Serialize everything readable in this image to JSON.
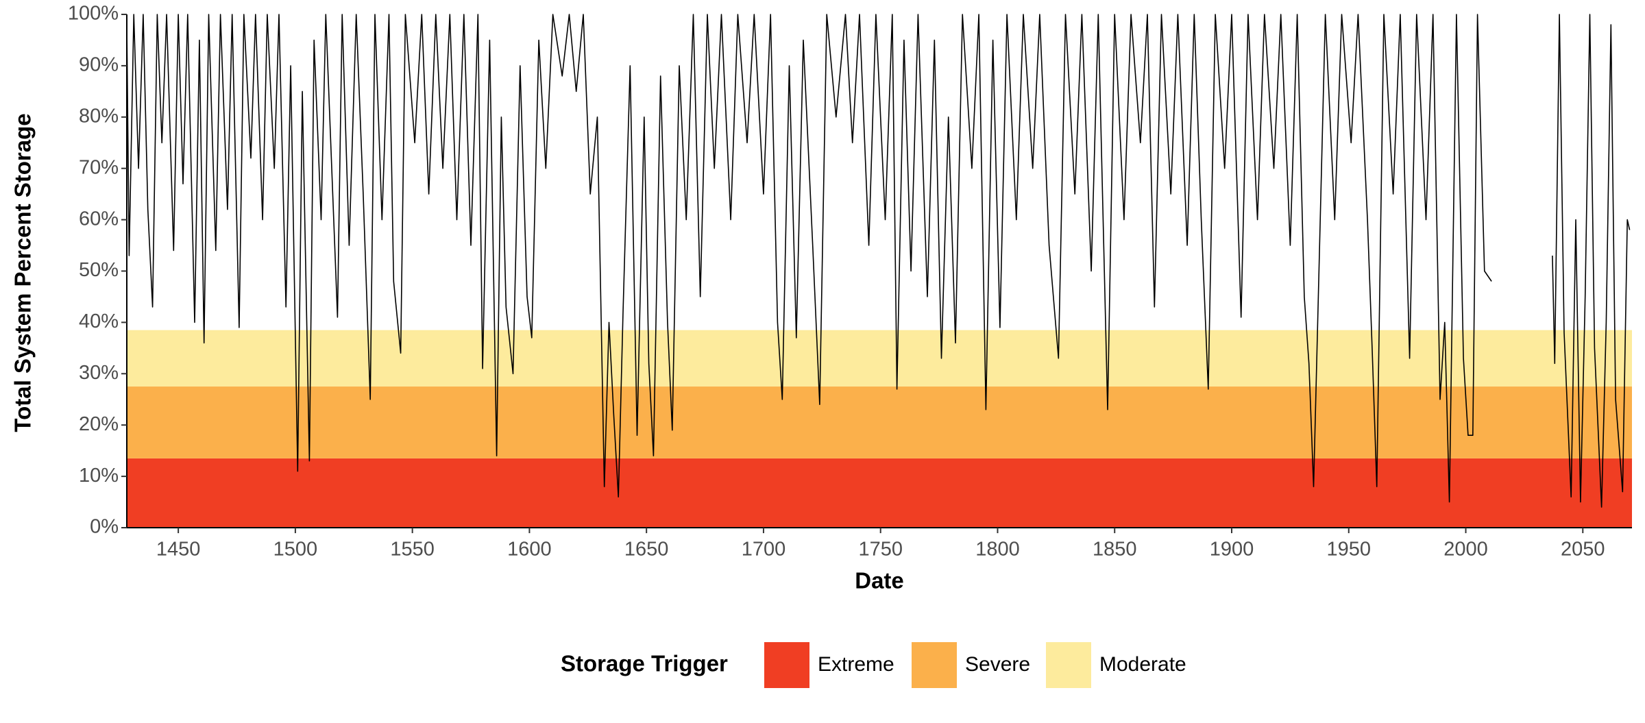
{
  "chart_data": {
    "type": "line",
    "x_label": "Date",
    "y_label": "Total System Percent Storage",
    "legend_title": "Storage Trigger",
    "line_color": "#000000",
    "triggers": [
      {
        "name": "Extreme",
        "color": "#f03e23",
        "range": [
          0,
          13.5
        ]
      },
      {
        "name": "Severe",
        "color": "#fbb04b",
        "range": [
          13.5,
          27.5
        ]
      },
      {
        "name": "Moderate",
        "color": "#fdeb9d",
        "range": [
          27.5,
          38.5
        ]
      }
    ],
    "xlim": [
      1428,
      2071
    ],
    "xticks": [
      1450,
      1500,
      1550,
      1600,
      1650,
      1700,
      1750,
      1800,
      1850,
      1900,
      1950,
      2000,
      2050
    ],
    "ylim": [
      0,
      100
    ],
    "yticks": [
      {
        "value": 0,
        "label": "0%"
      },
      {
        "value": 10,
        "label": "10%"
      },
      {
        "value": 20,
        "label": "20%"
      },
      {
        "value": 30,
        "label": "30%"
      },
      {
        "value": 40,
        "label": "40%"
      },
      {
        "value": 50,
        "label": "50%"
      },
      {
        "value": 60,
        "label": "60%"
      },
      {
        "value": 70,
        "label": "70%"
      },
      {
        "value": 80,
        "label": "80%"
      },
      {
        "value": 90,
        "label": "90%"
      },
      {
        "value": 100,
        "label": "100%"
      }
    ],
    "x": [
      1428,
      1429,
      1431,
      1433,
      1435,
      1437,
      1439,
      1441,
      1443,
      1445,
      1448,
      1450,
      1452,
      1454,
      1457,
      1459,
      1461,
      1463,
      1466,
      1468,
      1471,
      1473,
      1476,
      1478,
      1481,
      1483,
      1486,
      1488,
      1491,
      1493,
      1496,
      1498,
      1501,
      1503,
      1506,
      1508,
      1511,
      1513,
      1518,
      1520,
      1523,
      1526,
      1529,
      1532,
      1534,
      1537,
      1540,
      1542,
      1545,
      1547,
      1551,
      1554,
      1557,
      1560,
      1563,
      1566,
      1569,
      1572,
      1575,
      1578,
      1580,
      1583,
      1586,
      1588,
      1590,
      1593,
      1596,
      1599,
      1601,
      1604,
      1607,
      1610,
      1614,
      1617,
      1620,
      1623,
      1626,
      1629,
      1632,
      1634,
      1636,
      1638,
      1640,
      1643,
      1646,
      1649,
      1651,
      1653,
      1656,
      1659,
      1661,
      1664,
      1667,
      1670,
      1673,
      1676,
      1679,
      1682,
      1686,
      1689,
      1693,
      1696,
      1700,
      1703,
      1706,
      1708,
      1711,
      1714,
      1717,
      1721,
      1724,
      1727,
      1731,
      1735,
      1738,
      1741,
      1745,
      1748,
      1752,
      1755,
      1757,
      1760,
      1763,
      1766,
      1770,
      1773,
      1776,
      1779,
      1782,
      1785,
      1789,
      1792,
      1795,
      1798,
      1801,
      1804,
      1808,
      1811,
      1815,
      1818,
      1822,
      1826,
      1829,
      1833,
      1836,
      1840,
      1843,
      1847,
      1850,
      1854,
      1857,
      1861,
      1864,
      1867,
      1870,
      1874,
      1877,
      1881,
      1884,
      1887,
      1890,
      1893,
      1897,
      1900,
      1904,
      1907,
      1911,
      1914,
      1918,
      1921,
      1925,
      1928,
      1931,
      1933,
      1935,
      1937,
      1940,
      1944,
      1947,
      1951,
      1954,
      1958,
      1960,
      1962,
      1965,
      1969,
      1972,
      1976,
      1979,
      1983,
      1986,
      1989,
      1991,
      1993,
      1996,
      1999,
      2001,
      2003,
      2005,
      2008,
      2011,
      2024,
      2037,
      2038,
      2040,
      2042,
      2045,
      2047,
      2049,
      2051,
      2053,
      2055,
      2058,
      2060,
      2062,
      2064,
      2067,
      2069,
      2070
    ],
    "values": [
      98,
      53,
      100,
      70,
      100,
      62,
      43,
      100,
      75,
      100,
      54,
      100,
      67,
      100,
      40,
      95,
      36,
      100,
      54,
      100,
      62,
      100,
      39,
      100,
      72,
      100,
      60,
      100,
      70,
      100,
      43,
      90,
      11,
      85,
      13,
      95,
      60,
      100,
      41,
      100,
      55,
      100,
      65,
      25,
      100,
      60,
      100,
      48,
      34,
      100,
      75,
      100,
      65,
      100,
      70,
      100,
      60,
      100,
      55,
      100,
      31,
      95,
      14,
      80,
      43,
      30,
      90,
      45,
      37,
      95,
      70,
      100,
      88,
      100,
      85,
      100,
      65,
      80,
      8,
      40,
      22,
      6,
      42,
      90,
      18,
      80,
      32,
      14,
      88,
      40,
      19,
      90,
      60,
      100,
      45,
      100,
      70,
      100,
      60,
      100,
      75,
      100,
      65,
      100,
      40,
      25,
      90,
      37,
      95,
      55,
      24,
      100,
      80,
      100,
      75,
      100,
      55,
      100,
      60,
      100,
      27,
      95,
      50,
      100,
      45,
      95,
      33,
      80,
      36,
      100,
      70,
      100,
      23,
      95,
      39,
      100,
      60,
      100,
      70,
      100,
      55,
      33,
      100,
      65,
      100,
      50,
      100,
      23,
      100,
      60,
      100,
      75,
      100,
      43,
      100,
      65,
      100,
      55,
      100,
      60,
      27,
      100,
      70,
      100,
      41,
      100,
      60,
      100,
      70,
      100,
      55,
      100,
      45,
      32,
      8,
      45,
      100,
      60,
      100,
      75,
      100,
      60,
      35,
      8,
      100,
      65,
      100,
      33,
      100,
      60,
      100,
      25,
      40,
      5,
      100,
      33,
      18,
      18,
      100,
      50,
      48,
      null,
      53,
      32,
      100,
      38,
      6,
      60,
      5,
      45,
      100,
      35,
      4,
      40,
      98,
      25,
      7,
      60,
      58
    ]
  }
}
